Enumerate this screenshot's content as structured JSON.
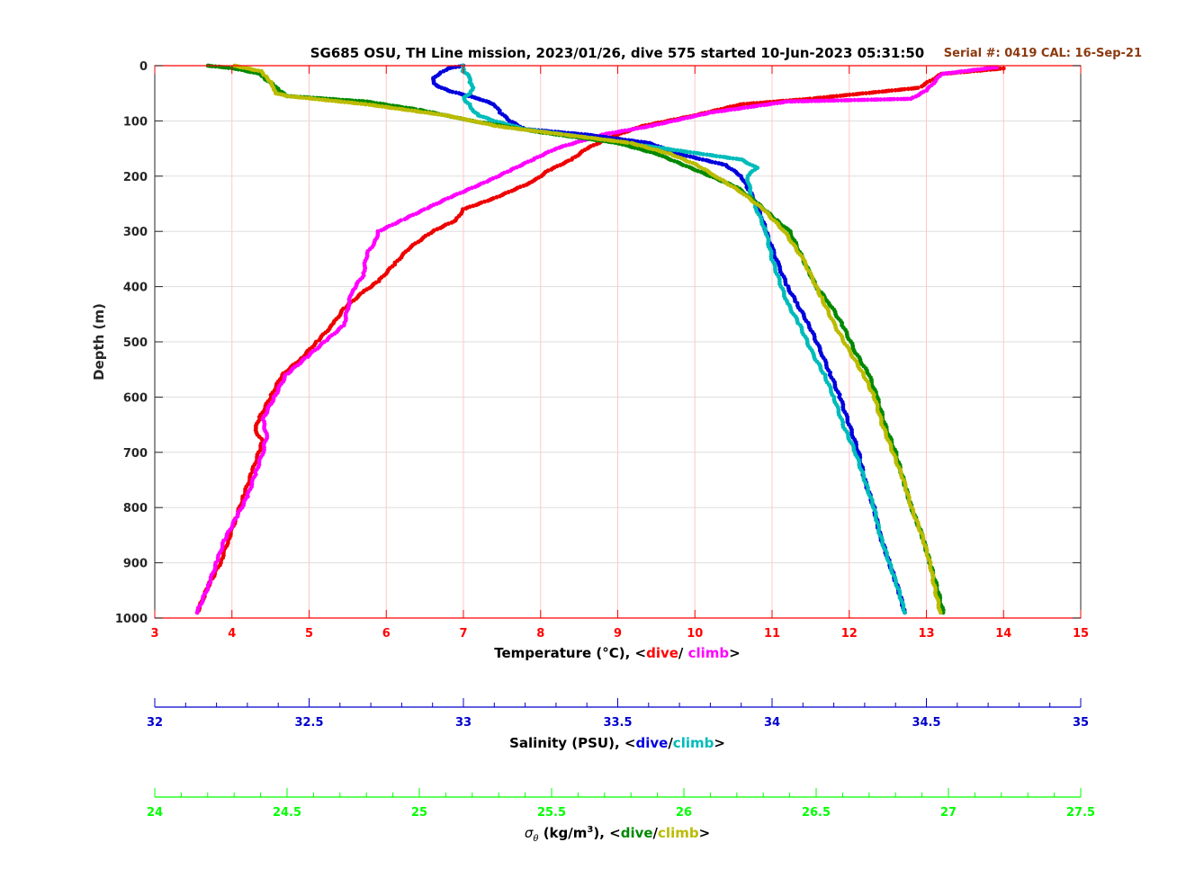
{
  "chart_data": {
    "type": "scatter",
    "title": "SG685 OSU, TH Line mission, 2023/01/26, dive 575 started 10-Jun-2023 05:31:50",
    "serial_label": "Serial #: 0419  CAL: 16-Sep-21",
    "ylabel": "Depth (m)",
    "ylim": [
      0,
      1000
    ],
    "y_reversed": true,
    "yticks": [
      "0",
      "100",
      "200",
      "300",
      "400",
      "500",
      "600",
      "700",
      "800",
      "900",
      "1000"
    ],
    "grid": true,
    "axes": {
      "temperature": {
        "label_prefix": "Temperature (°C), <",
        "label_dive": "dive",
        "label_sep": "/ ",
        "label_climb": "climb",
        "label_suffix": ">",
        "range": [
          3,
          15
        ],
        "ticks": [
          "3",
          "4",
          "5",
          "6",
          "7",
          "8",
          "9",
          "10",
          "11",
          "12",
          "13",
          "14",
          "15"
        ],
        "color": "#ff0000"
      },
      "salinity": {
        "label_prefix": "Salinity (PSU), <",
        "label_dive": "dive",
        "label_sep": "/",
        "label_climb": "climb",
        "label_suffix": ">",
        "range": [
          32,
          35
        ],
        "ticks": [
          "32",
          "32.5",
          "33",
          "33.5",
          "34",
          "34.5",
          "35"
        ],
        "color": "#0000cc"
      },
      "sigma": {
        "label_sym": "σ",
        "label_sub": "θ",
        "label_prefix": " (kg/m",
        "label_sup": "3",
        "label_mid": "), <",
        "label_dive": "dive",
        "label_sep": "/",
        "label_climb": "climb",
        "label_suffix": ">",
        "range": [
          24,
          27.5
        ],
        "ticks": [
          "24",
          "24.5",
          "25",
          "25.5",
          "26",
          "26.5",
          "27",
          "27.5"
        ],
        "color": "#00ff00"
      }
    },
    "series": [
      {
        "name": "dive",
        "variable": "temperature",
        "color": "#ee0000",
        "depth": [
          5,
          15,
          40,
          60,
          70,
          90,
          110,
          130,
          150,
          170,
          190,
          210,
          240,
          260,
          280,
          300,
          330,
          360,
          390,
          410,
          440,
          470,
          500,
          530,
          560,
          600,
          640,
          660,
          680,
          700,
          740,
          780,
          820,
          860,
          900,
          940,
          990
        ],
        "values": [
          14.0,
          13.2,
          12.9,
          11.5,
          10.6,
          10.0,
          9.3,
          8.9,
          8.6,
          8.4,
          8.1,
          7.9,
          7.4,
          7.0,
          6.9,
          6.6,
          6.3,
          6.1,
          5.9,
          5.7,
          5.45,
          5.3,
          5.1,
          4.9,
          4.65,
          4.5,
          4.35,
          4.3,
          4.4,
          4.35,
          4.25,
          4.15,
          4.05,
          3.95,
          3.85,
          3.7,
          3.55
        ]
      },
      {
        "name": "climb",
        "variable": "temperature",
        "color": "#ff00ff",
        "depth": [
          3,
          15,
          45,
          60,
          65,
          85,
          110,
          125,
          150,
          170,
          190,
          210,
          240,
          260,
          280,
          300,
          320,
          340,
          380,
          410,
          440,
          470,
          500,
          530,
          560,
          600,
          640,
          670,
          700,
          740,
          780,
          820,
          860,
          900,
          940,
          990
        ],
        "values": [
          13.9,
          13.2,
          13.0,
          12.8,
          11.2,
          10.2,
          9.4,
          8.8,
          8.2,
          7.9,
          7.6,
          7.3,
          6.8,
          6.5,
          6.2,
          5.9,
          5.85,
          5.75,
          5.7,
          5.55,
          5.5,
          5.45,
          5.2,
          4.95,
          4.7,
          4.55,
          4.4,
          4.45,
          4.4,
          4.3,
          4.2,
          4.05,
          3.9,
          3.8,
          3.7,
          3.55
        ]
      },
      {
        "name": "dive",
        "variable": "salinity",
        "color": "#0000dd",
        "depth": [
          0,
          5,
          15,
          25,
          35,
          45,
          60,
          70,
          85,
          100,
          115,
          125,
          140,
          160,
          180,
          200,
          220,
          250,
          280,
          300,
          330,
          360,
          400,
          430,
          470,
          520,
          560,
          600,
          650,
          700,
          750,
          800,
          850,
          900,
          950,
          990
        ],
        "values": [
          33.0,
          32.95,
          32.92,
          32.9,
          32.91,
          32.95,
          33.05,
          33.1,
          33.12,
          33.15,
          33.2,
          33.4,
          33.6,
          33.7,
          33.85,
          33.9,
          33.92,
          33.95,
          33.97,
          33.98,
          34.0,
          34.02,
          34.05,
          34.08,
          34.12,
          34.16,
          34.19,
          34.22,
          34.25,
          34.28,
          34.3,
          34.33,
          34.35,
          34.38,
          34.41,
          34.43
        ]
      },
      {
        "name": "climb",
        "variable": "salinity",
        "color": "#00bbbb",
        "depth": [
          0,
          10,
          20,
          30,
          40,
          50,
          60,
          70,
          80,
          90,
          100,
          115,
          130,
          150,
          170,
          185,
          200,
          230,
          260,
          300,
          350,
          400,
          430,
          470,
          520,
          560,
          600,
          650,
          700,
          750,
          800,
          850,
          900,
          950,
          990
        ],
        "values": [
          33.0,
          33.0,
          33.02,
          33.02,
          33.03,
          33.02,
          33.0,
          33.02,
          33.03,
          33.05,
          33.1,
          33.2,
          33.4,
          33.65,
          33.9,
          33.95,
          33.92,
          33.93,
          33.95,
          33.98,
          34.0,
          34.03,
          34.05,
          34.09,
          34.13,
          34.17,
          34.2,
          34.23,
          34.27,
          34.3,
          34.33,
          34.35,
          34.38,
          34.41,
          34.43
        ]
      },
      {
        "name": "dive",
        "variable": "sigma",
        "color": "#008800",
        "depth": [
          0,
          5,
          15,
          25,
          35,
          45,
          55,
          65,
          80,
          100,
          120,
          140,
          160,
          180,
          200,
          220,
          250,
          280,
          300,
          350,
          400,
          430,
          470,
          520,
          560,
          600,
          650,
          700,
          750,
          800,
          850,
          900,
          950,
          990
        ],
        "values": [
          24.2,
          24.3,
          24.4,
          24.42,
          24.45,
          24.47,
          24.5,
          24.8,
          25.0,
          25.2,
          25.45,
          25.75,
          25.9,
          26.0,
          26.1,
          26.2,
          26.28,
          26.35,
          26.4,
          26.45,
          26.5,
          26.55,
          26.6,
          26.65,
          26.7,
          26.73,
          26.76,
          26.8,
          26.83,
          26.86,
          26.9,
          26.93,
          26.96,
          26.98
        ]
      },
      {
        "name": "climb",
        "variable": "sigma",
        "color": "#bbbb00",
        "depth": [
          0,
          10,
          20,
          30,
          40,
          50,
          55,
          70,
          90,
          110,
          125,
          140,
          160,
          180,
          200,
          230,
          260,
          300,
          350,
          380,
          420,
          470,
          520,
          560,
          600,
          650,
          700,
          750,
          800,
          850,
          900,
          950,
          990
        ],
        "values": [
          24.3,
          24.4,
          24.42,
          24.44,
          24.45,
          24.46,
          24.5,
          24.8,
          25.1,
          25.3,
          25.55,
          25.8,
          25.95,
          26.05,
          26.12,
          26.22,
          26.3,
          26.38,
          26.45,
          26.48,
          26.52,
          26.57,
          26.63,
          26.68,
          26.72,
          26.75,
          26.79,
          26.83,
          26.86,
          26.9,
          26.93,
          26.95,
          26.97
        ]
      }
    ]
  }
}
